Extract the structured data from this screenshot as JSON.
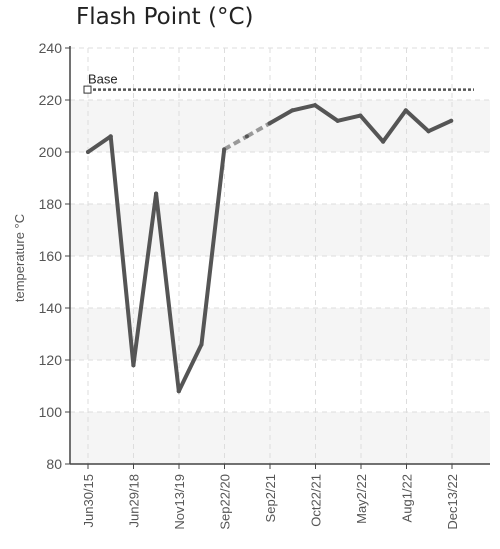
{
  "chart_data": {
    "type": "line",
    "title": "Flash Point (°C)",
    "ylabel": "temperature °C",
    "xlabel": "",
    "ylim": [
      80,
      240
    ],
    "yticks": [
      80,
      100,
      120,
      140,
      160,
      180,
      200,
      220,
      240
    ],
    "x_tick_labels": [
      "Jun30/15",
      "Jun29/18",
      "Nov13/19",
      "Sep22/20",
      "Sep2/21",
      "Oct22/21",
      "May2/22",
      "Aug1/22",
      "Dec13/22"
    ],
    "grid": true,
    "series": [
      {
        "values": [
          200,
          206,
          118,
          184,
          108,
          126,
          201,
          206,
          211,
          216,
          218,
          212,
          214,
          204,
          216,
          208,
          212
        ],
        "dashed_segment_indices": [
          6,
          7
        ],
        "color": "#555555"
      }
    ],
    "reference_line": {
      "label": "Base",
      "value": 224,
      "color": "#555555"
    }
  }
}
